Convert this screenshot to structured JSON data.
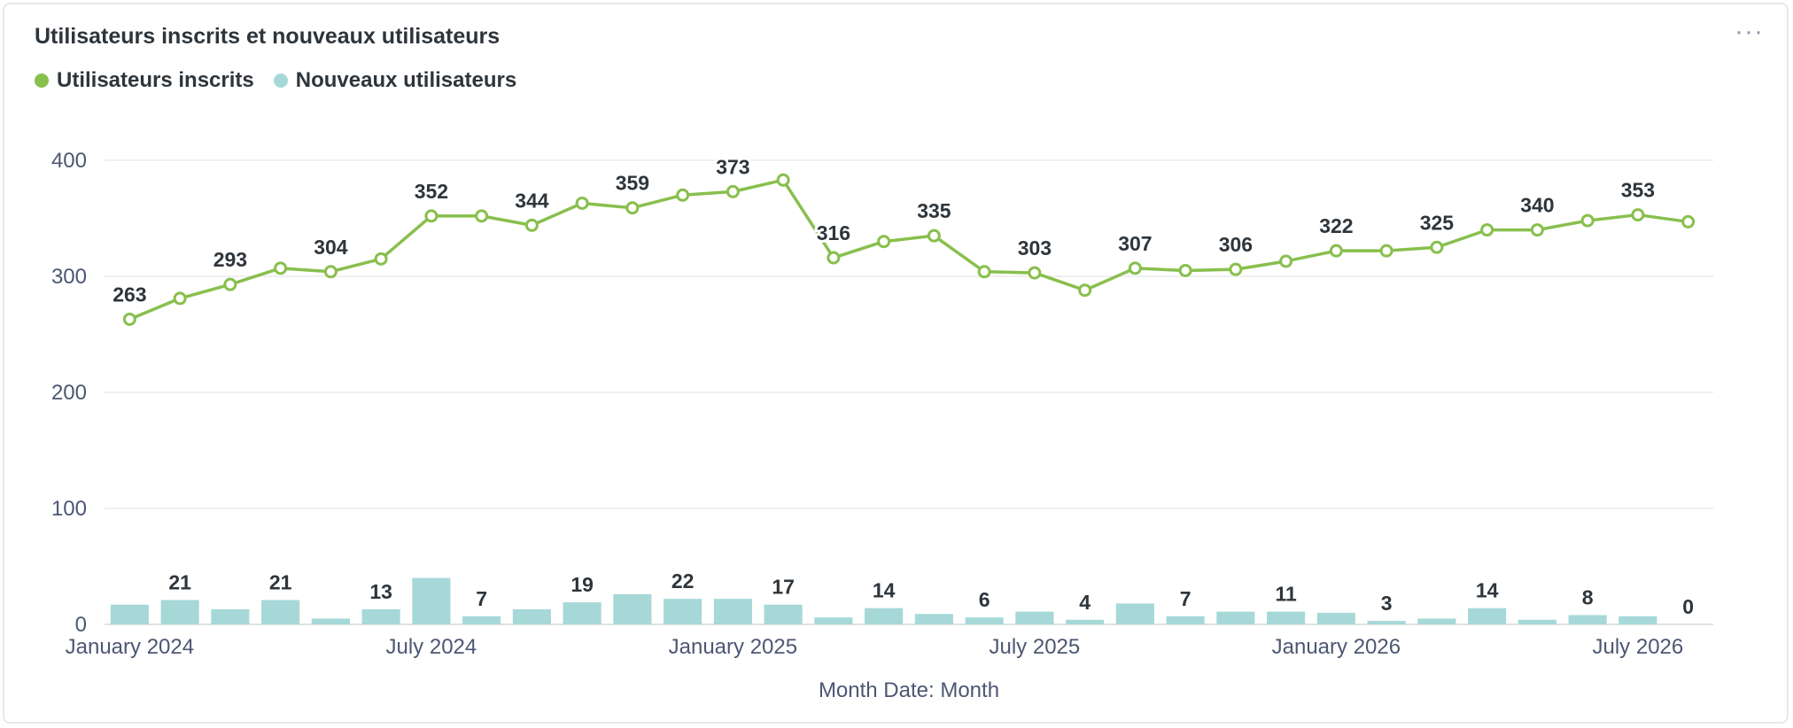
{
  "card": {
    "title": "Utilisateurs inscrits et nouveaux utilisateurs",
    "menu_label": "···"
  },
  "legend": [
    {
      "label": "Utilisateurs inscrits",
      "color": "#88bf4d"
    },
    {
      "label": "Nouveaux utilisateurs",
      "color": "#a7d8d8"
    }
  ],
  "chart_data": {
    "type": "line+bar",
    "xlabel": "Month Date: Month",
    "ylim": [
      0,
      400
    ],
    "y_ticks": [
      0,
      100,
      200,
      300,
      400
    ],
    "x_tick_labels": [
      {
        "index": 0,
        "label": "January 2024"
      },
      {
        "index": 6,
        "label": "July 2024"
      },
      {
        "index": 12,
        "label": "January 2025"
      },
      {
        "index": 18,
        "label": "July 2025"
      },
      {
        "index": 24,
        "label": "January 2026"
      },
      {
        "index": 30,
        "label": "July 2026"
      }
    ],
    "categories": [
      "2024-01",
      "2024-02",
      "2024-03",
      "2024-04",
      "2024-05",
      "2024-06",
      "2024-07",
      "2024-08",
      "2024-09",
      "2024-10",
      "2024-11",
      "2024-12",
      "2025-01",
      "2025-02",
      "2025-03",
      "2025-04",
      "2025-05",
      "2025-06",
      "2025-07",
      "2025-08",
      "2025-09",
      "2025-10",
      "2025-11",
      "2025-12",
      "2026-01",
      "2026-02",
      "2026-03",
      "2026-04",
      "2026-05",
      "2026-06",
      "2026-07",
      "2026-08"
    ],
    "series": [
      {
        "name": "Utilisateurs inscrits",
        "type": "line",
        "color": "#88bf4d",
        "values": [
          263,
          281,
          293,
          307,
          304,
          315,
          352,
          352,
          344,
          363,
          359,
          370,
          373,
          383,
          316,
          330,
          335,
          304,
          303,
          288,
          307,
          305,
          306,
          313,
          322,
          322,
          325,
          340,
          340,
          348,
          353,
          347
        ],
        "labeled_indices": [
          0,
          2,
          4,
          6,
          8,
          10,
          12,
          14,
          16,
          18,
          20,
          22,
          24,
          26,
          28,
          30
        ]
      },
      {
        "name": "Nouveaux utilisateurs",
        "type": "bar",
        "color": "#a7d8d8",
        "values": [
          17,
          21,
          13,
          21,
          5,
          13,
          40,
          7,
          13,
          19,
          26,
          22,
          22,
          17,
          6,
          14,
          9,
          6,
          11,
          4,
          18,
          7,
          11,
          11,
          10,
          3,
          5,
          14,
          4,
          8,
          7,
          0
        ],
        "labeled_indices": [
          1,
          3,
          5,
          7,
          9,
          11,
          13,
          15,
          17,
          19,
          21,
          23,
          25,
          27,
          29,
          31
        ]
      }
    ]
  }
}
